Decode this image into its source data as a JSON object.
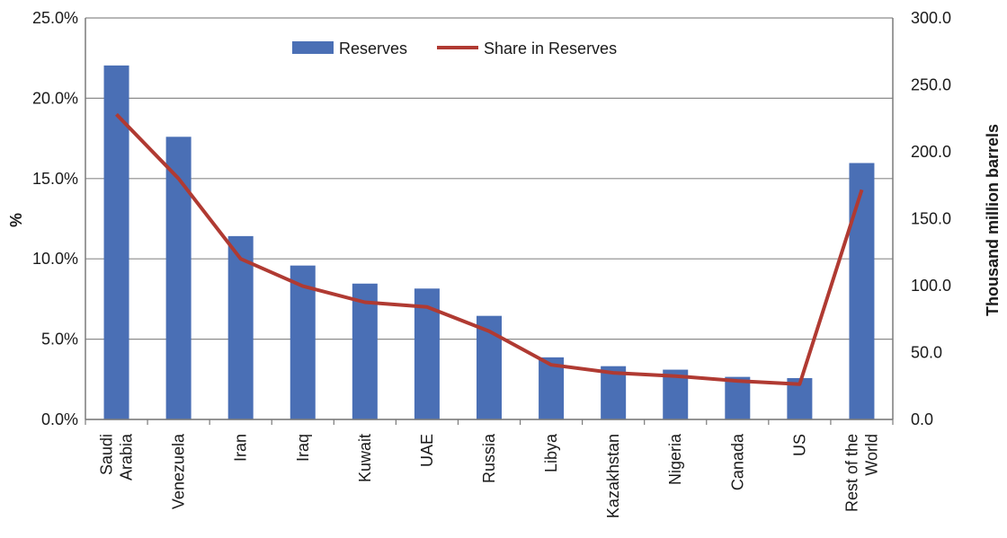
{
  "chart_data": {
    "type": "bar",
    "categories": [
      [
        "Saudi",
        "Arabia"
      ],
      [
        "Venezuela"
      ],
      [
        "Iran"
      ],
      [
        "Iraq"
      ],
      [
        "Kuwait"
      ],
      [
        "UAE"
      ],
      [
        "Russia"
      ],
      [
        "Libya"
      ],
      [
        "Kazakhstan"
      ],
      [
        "Nigeria"
      ],
      [
        "Canada"
      ],
      [
        "US"
      ],
      [
        "Rest of the",
        "World"
      ]
    ],
    "series": [
      {
        "name": "Reserves",
        "type": "bar",
        "axis": "right",
        "color": "#4a6fb5",
        "values": [
          264.5,
          211.2,
          137.0,
          115.0,
          101.5,
          97.8,
          77.4,
          46.4,
          39.8,
          37.2,
          31.8,
          30.9,
          191.6
        ]
      },
      {
        "name": "Share in Reserves",
        "type": "line",
        "axis": "left",
        "color": "#b03a32",
        "values": [
          19.0,
          15.0,
          10.0,
          8.3,
          7.3,
          7.0,
          5.5,
          3.4,
          2.9,
          2.7,
          2.4,
          2.2,
          14.3
        ]
      }
    ],
    "y_left": {
      "label": "%",
      "ticks": [
        "0.0%",
        "5.0%",
        "10.0%",
        "15.0%",
        "20.0%",
        "25.0%"
      ],
      "range": [
        0,
        25
      ]
    },
    "y_right": {
      "label": "Thousand million barrels",
      "ticks": [
        "0.0",
        "50.0",
        "100.0",
        "150.0",
        "200.0",
        "250.0",
        "300.0"
      ],
      "range": [
        0,
        300
      ]
    },
    "grid": true,
    "legend_position": "top-center"
  }
}
